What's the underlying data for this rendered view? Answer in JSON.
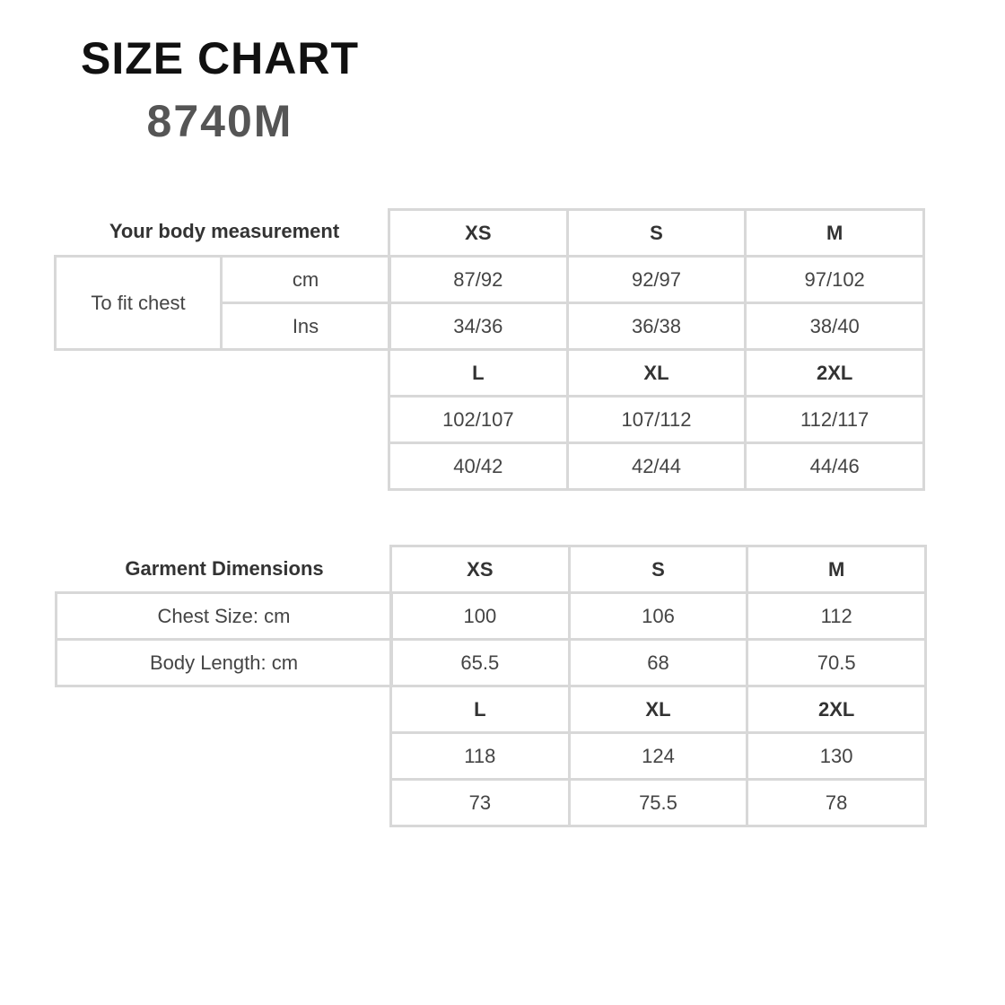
{
  "title": "SIZE CHART",
  "product_code": "8740M",
  "body": {
    "header": "Your body measurement",
    "row_label": "To fit chest",
    "units": [
      "cm",
      "Ins"
    ],
    "blocks": [
      {
        "sizes": [
          "XS",
          "S",
          "M"
        ],
        "cm": [
          "87/92",
          "92/97",
          "97/102"
        ],
        "ins": [
          "34/36",
          "36/38",
          "38/40"
        ]
      },
      {
        "sizes": [
          "L",
          "XL",
          "2XL"
        ],
        "cm": [
          "102/107",
          "107/112",
          "112/117"
        ],
        "ins": [
          "40/42",
          "42/44",
          "44/46"
        ]
      }
    ]
  },
  "garment": {
    "header": "Garment Dimensions",
    "rows": [
      "Chest Size: cm",
      "Body Length: cm"
    ],
    "blocks": [
      {
        "sizes": [
          "XS",
          "S",
          "M"
        ],
        "chest": [
          "100",
          "106",
          "112"
        ],
        "length": [
          "65.5",
          "68",
          "70.5"
        ]
      },
      {
        "sizes": [
          "L",
          "XL",
          "2XL"
        ],
        "chest": [
          "118",
          "124",
          "130"
        ],
        "length": [
          "73",
          "75.5",
          "78"
        ]
      }
    ]
  }
}
